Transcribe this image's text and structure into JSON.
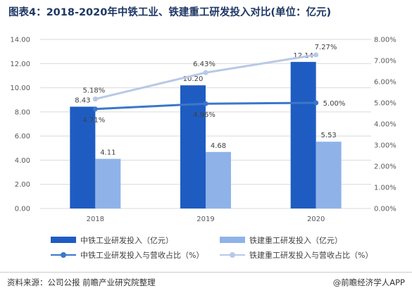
{
  "title": "图表4：2018-2020年中铁工业、铁建重工研发投入对比(单位：亿元)",
  "source": "资料来源：公司公报 前瞻产业研究院整理",
  "brand": "@前瞻经济学人APP",
  "colors": {
    "bar1": "#1f5cc2",
    "bar2": "#8fb3e8",
    "line1": "#3a78c9",
    "line2": "#b8c9e6"
  },
  "chart_data": {
    "type": "bar",
    "categories": [
      "2018",
      "2019",
      "2020"
    ],
    "series": [
      {
        "name": "中铁工业研发投入（亿元）",
        "type": "bar",
        "axis": "left",
        "values": [
          8.43,
          10.2,
          12.14
        ],
        "labels": [
          "8.43",
          "10.20",
          "12.14"
        ]
      },
      {
        "name": "铁建重工研发投入（亿元）",
        "type": "bar",
        "axis": "left",
        "values": [
          4.11,
          4.68,
          5.53
        ],
        "labels": [
          "4.11",
          "4.68",
          "5.53"
        ]
      },
      {
        "name": "中铁工业研发投入与营收占比（%）",
        "type": "line",
        "axis": "right",
        "values": [
          4.71,
          4.96,
          5.0
        ],
        "labels": [
          "4.71%",
          "4.96%",
          "5.00%"
        ]
      },
      {
        "name": "铁建重工研发投入与营收占比（%）",
        "type": "line",
        "axis": "right",
        "values": [
          5.18,
          6.43,
          7.27
        ],
        "labels": [
          "5.18%",
          "6.43%",
          "7.27%"
        ]
      }
    ],
    "left_axis": {
      "ylim": [
        0,
        14
      ],
      "ticks": [
        "0.00",
        "2.00",
        "4.00",
        "6.00",
        "8.00",
        "10.00",
        "12.00",
        "14.00"
      ]
    },
    "right_axis": {
      "ylim": [
        0,
        8
      ],
      "ticks": [
        "0.00%",
        "1.00%",
        "2.00%",
        "3.00%",
        "4.00%",
        "5.00%",
        "6.00%",
        "7.00%",
        "8.00%"
      ]
    },
    "grid": true,
    "legend": "bottom"
  }
}
